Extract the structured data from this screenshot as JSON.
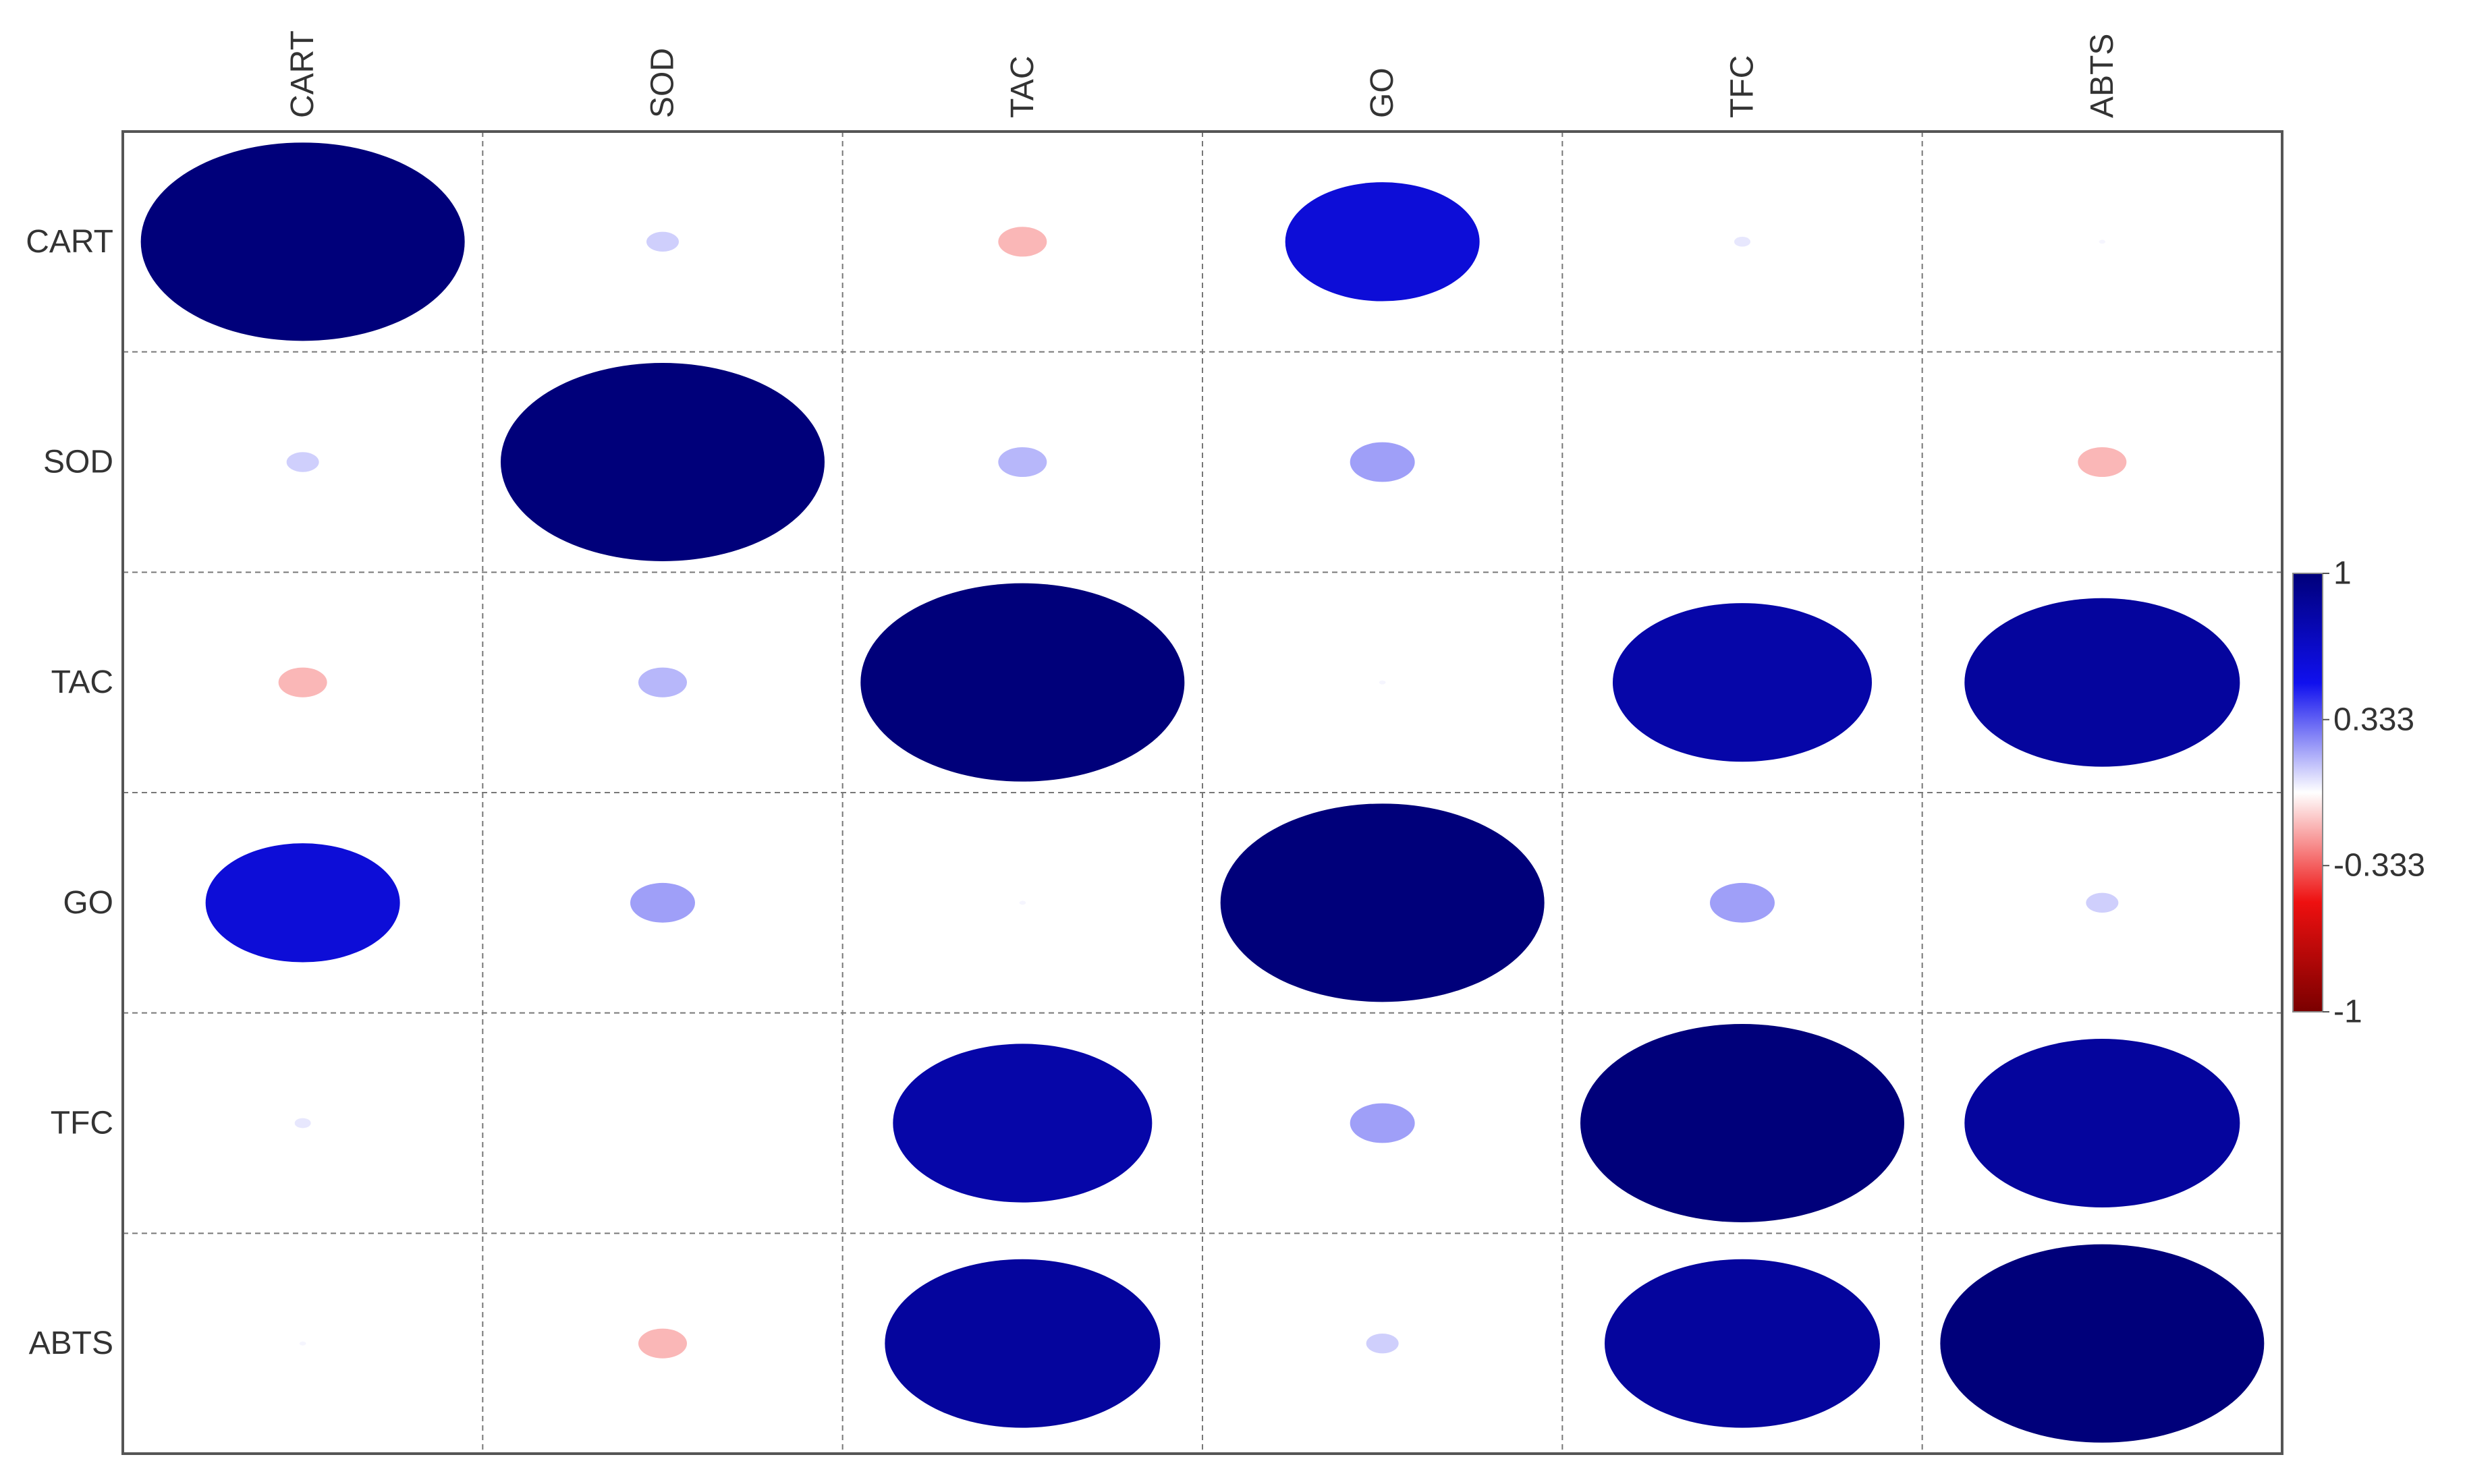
{
  "chart_data": {
    "type": "heatmap",
    "subtype": "correlation-ellipse",
    "variables": [
      "CART",
      "SOD",
      "TAC",
      "GO",
      "TFC",
      "ABTS"
    ],
    "matrix": [
      [
        1.0,
        0.1,
        -0.15,
        0.6,
        0.05,
        0.02
      ],
      [
        0.1,
        1.0,
        0.15,
        0.2,
        0.0,
        -0.15
      ],
      [
        -0.15,
        0.15,
        1.0,
        0.02,
        0.8,
        0.85
      ],
      [
        0.6,
        0.2,
        0.02,
        1.0,
        0.2,
        0.1
      ],
      [
        0.05,
        0.0,
        0.8,
        0.2,
        1.0,
        0.85
      ],
      [
        0.02,
        -0.15,
        0.85,
        0.1,
        0.85,
        1.0
      ]
    ],
    "colorbar": {
      "range": [
        -1,
        1
      ],
      "tick_labels": [
        "1",
        "0.333",
        "-0.333",
        "-1"
      ],
      "tick_values": [
        1,
        0.333,
        -0.333,
        -1
      ],
      "colors": {
        "pos_strong": "#00007a",
        "pos_mid": "#1010ee",
        "neutral": "#ffffff",
        "neg_mid": "#ee1010",
        "neg_strong": "#7a0000"
      }
    },
    "grid": "dashed",
    "legend_position": "right"
  }
}
